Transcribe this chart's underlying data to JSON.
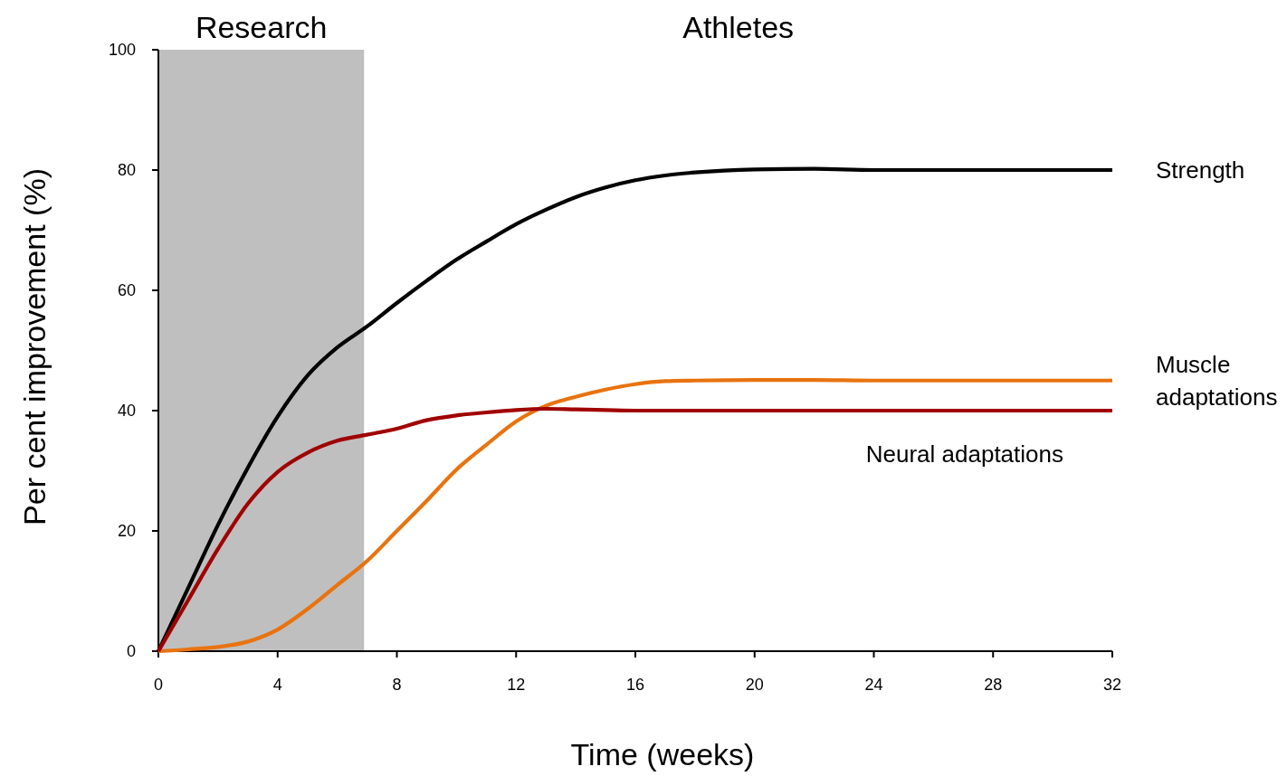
{
  "chart_data": {
    "type": "line",
    "xlabel": "Time (weeks)",
    "ylabel": "Per cent improvement (%)",
    "xlim": [
      0,
      32
    ],
    "xticks": [
      0,
      4,
      8,
      12,
      16,
      20,
      24,
      28,
      32
    ],
    "ylim": [
      0,
      100
    ],
    "yticks": [
      0,
      20,
      40,
      60,
      80,
      100
    ],
    "line_style": "solid",
    "bands": [
      {
        "axis": "x",
        "from": 0,
        "to": 6.9,
        "label": "Research",
        "color": "#bfbfbf"
      }
    ],
    "annotations": [
      "Athletes"
    ],
    "x": [
      0,
      1,
      2,
      3,
      4,
      5,
      6,
      7,
      8,
      9,
      10,
      11,
      12,
      13,
      14,
      15,
      16,
      17,
      18,
      20,
      22,
      24,
      28,
      32
    ],
    "series": [
      {
        "name": "Strength",
        "color": "#000000",
        "values": [
          0,
          10.5,
          21,
          30.5,
          39,
          45.8,
          50.5,
          54,
          57.9,
          61.6,
          65.1,
          68.1,
          71,
          73.4,
          75.5,
          77.1,
          78.3,
          79.1,
          79.6,
          80.1,
          80.2,
          80,
          80,
          80
        ]
      },
      {
        "name": "Muscle adaptations",
        "color": "#e8730f",
        "values": [
          0,
          0.3,
          0.7,
          1.6,
          3.6,
          7,
          11,
          15,
          20,
          25,
          30.2,
          34.3,
          38.2,
          40.8,
          42.3,
          43.5,
          44.4,
          44.9,
          45,
          45.1,
          45.1,
          45,
          45,
          45
        ]
      },
      {
        "name": "Neural adaptations",
        "color": "#a00000",
        "values": [
          0,
          8.5,
          17,
          24.5,
          29.8,
          33,
          35,
          36,
          37,
          38.4,
          39.2,
          39.7,
          40.1,
          40.3,
          40.2,
          40.1,
          40,
          40,
          40,
          40,
          40,
          40,
          40,
          40
        ]
      }
    ]
  }
}
